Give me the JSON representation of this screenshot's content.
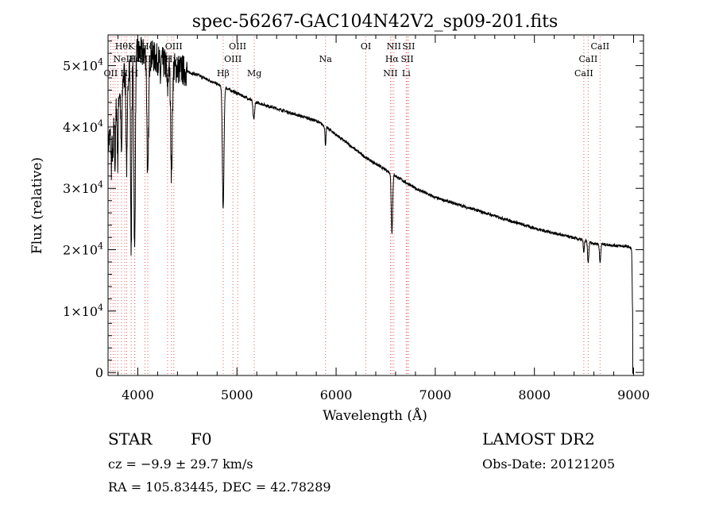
{
  "info": {
    "class_label": "STAR",
    "subclass": "F0",
    "survey": "LAMOST DR2",
    "redshift": "cz = −9.9 ± 29.7 km/s",
    "obs_date": "Obs-Date: 20121205",
    "coords": "RA = 105.83445, DEC =  42.78289"
  },
  "chart_data": {
    "type": "line",
    "title": "spec-56267-GAC104N42V2_sp09-201.fits",
    "xlabel": "Wavelength (Å)",
    "ylabel": "Flux (relative)",
    "xlim": [
      3700,
      9100
    ],
    "ylim": [
      -500,
      55000
    ],
    "x_ticks": [
      4000,
      5000,
      6000,
      7000,
      8000,
      9000
    ],
    "x_tick_labels": [
      "4000",
      "5000",
      "6000",
      "7000",
      "8000",
      "9000"
    ],
    "y_ticks": [
      0,
      10000,
      20000,
      30000,
      40000,
      50000
    ],
    "y_tick_labels": [
      {
        "mant": "0",
        "exp": ""
      },
      {
        "mant": "1×10",
        "exp": "4"
      },
      {
        "mant": "2×10",
        "exp": "4"
      },
      {
        "mant": "3×10",
        "exp": "4"
      },
      {
        "mant": "4×10",
        "exp": "4"
      },
      {
        "mant": "5×10",
        "exp": "4"
      }
    ],
    "continuum": [
      [
        3700,
        37000
      ],
      [
        3750,
        41000
      ],
      [
        3800,
        45000
      ],
      [
        3850,
        48000
      ],
      [
        3900,
        50000
      ],
      [
        4000,
        52000
      ],
      [
        4100,
        52000
      ],
      [
        4200,
        51000
      ],
      [
        4300,
        50000
      ],
      [
        4400,
        49500
      ],
      [
        4600,
        48500
      ],
      [
        4800,
        47000
      ],
      [
        5000,
        45500
      ],
      [
        5200,
        44000
      ],
      [
        5500,
        42500
      ],
      [
        5800,
        41000
      ],
      [
        5900,
        40000
      ],
      [
        6100,
        37500
      ],
      [
        6300,
        35000
      ],
      [
        6500,
        33000
      ],
      [
        6600,
        32000
      ],
      [
        6800,
        30000
      ],
      [
        7000,
        28500
      ],
      [
        7500,
        26000
      ],
      [
        8000,
        23500
      ],
      [
        8500,
        21500
      ],
      [
        8600,
        21000
      ],
      [
        8950,
        20500
      ],
      [
        8990,
        20000
      ]
    ],
    "absorption_lines": [
      {
        "x": 3734,
        "depth": 6000,
        "width": 5
      },
      {
        "x": 3750,
        "depth": 7000,
        "width": 5
      },
      {
        "x": 3771,
        "depth": 9000,
        "width": 5
      },
      {
        "x": 3798,
        "depth": 10000,
        "width": 5
      },
      {
        "x": 3835,
        "depth": 12000,
        "width": 6
      },
      {
        "x": 3889,
        "depth": 16000,
        "width": 7
      },
      {
        "x": 3933,
        "depth": 30000,
        "width": 6
      },
      {
        "x": 3968,
        "depth": 32000,
        "width": 7
      },
      {
        "x": 4101,
        "depth": 21000,
        "width": 8
      },
      {
        "x": 4227,
        "depth": 3000,
        "width": 4
      },
      {
        "x": 4300,
        "depth": 4000,
        "width": 6
      },
      {
        "x": 4340,
        "depth": 17000,
        "width": 8
      },
      {
        "x": 4861,
        "depth": 20000,
        "width": 8
      },
      {
        "x": 5170,
        "depth": 3000,
        "width": 8
      },
      {
        "x": 5893,
        "depth": 3000,
        "width": 5
      },
      {
        "x": 6563,
        "depth": 9500,
        "width": 7
      },
      {
        "x": 8498,
        "depth": 2000,
        "width": 5
      },
      {
        "x": 8542,
        "depth": 3500,
        "width": 6
      },
      {
        "x": 8662,
        "depth": 3000,
        "width": 6
      },
      {
        "x": 8990,
        "depth": 10000,
        "width": 4
      }
    ],
    "spectrum_end": {
      "x": 8992,
      "flux": -200
    },
    "ref_lines": [
      {
        "x": 3727,
        "label": "OII",
        "row": 2
      },
      {
        "x": 3750,
        "label": "",
        "row": 0
      },
      {
        "x": 3771,
        "label": "",
        "row": 0
      },
      {
        "x": 3798,
        "label": "",
        "row": 0
      },
      {
        "x": 3835,
        "label": "Hθ",
        "row": 0
      },
      {
        "x": 3869,
        "label": "NeIII",
        "row": 1
      },
      {
        "x": 3889,
        "label": "Hη",
        "row": 2
      },
      {
        "x": 3933,
        "label": "K",
        "row": 0
      },
      {
        "x": 3968,
        "label": "H",
        "row": 2
      },
      {
        "x": 3970,
        "label": "Hε",
        "row": 1
      },
      {
        "x": 4101,
        "label": "Hδ",
        "row": 0
      },
      {
        "x": 4072,
        "label": "SII",
        "row": 1
      },
      {
        "x": 4300,
        "label": "G",
        "row": 2
      },
      {
        "x": 4340,
        "label": "Hγ",
        "row": 1
      },
      {
        "x": 4363,
        "label": "OIII",
        "row": 0
      },
      {
        "x": 4861,
        "label": "Hβ",
        "row": 2
      },
      {
        "x": 4959,
        "label": "OIII",
        "row": 1
      },
      {
        "x": 5007,
        "label": "OIII",
        "row": 0
      },
      {
        "x": 5175,
        "label": "Mg",
        "row": 2
      },
      {
        "x": 5893,
        "label": "Na",
        "row": 1
      },
      {
        "x": 6300,
        "label": "OI",
        "row": 0
      },
      {
        "x": 6548,
        "label": "NII",
        "row": 2
      },
      {
        "x": 6563,
        "label": "Hα",
        "row": 1
      },
      {
        "x": 6583,
        "label": "NII",
        "row": 0
      },
      {
        "x": 6707,
        "label": "Li",
        "row": 2
      },
      {
        "x": 6717,
        "label": "SII",
        "row": 1
      },
      {
        "x": 6731,
        "label": "SII",
        "row": 0
      },
      {
        "x": 8498,
        "label": "CaII",
        "row": 2
      },
      {
        "x": 8542,
        "label": "CaII",
        "row": 1
      },
      {
        "x": 8662,
        "label": "CaII",
        "row": 0
      }
    ],
    "colors": {
      "spectrum": "#000000",
      "ref_line": "#e06060",
      "axes": "#000000"
    },
    "grid": false,
    "legend": "none"
  }
}
